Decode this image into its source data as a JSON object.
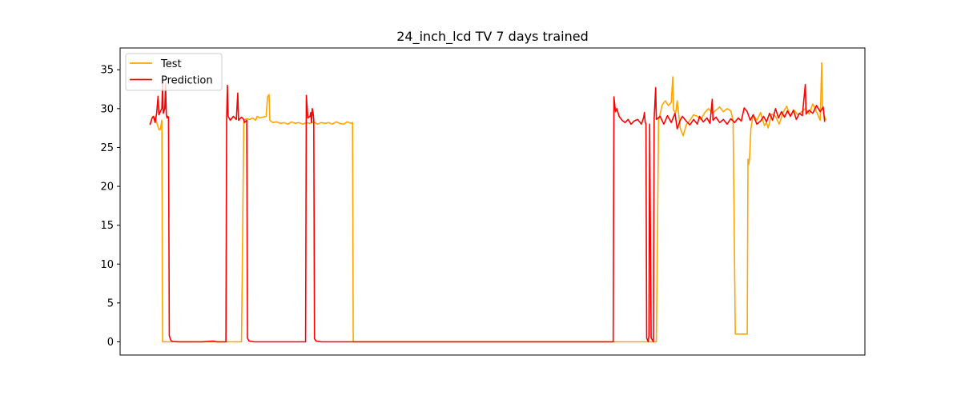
{
  "chart_data": {
    "type": "line",
    "title": "24_inch_lcd TV 7 days trained",
    "xlabel": "",
    "ylabel": "",
    "xlim": [
      0,
      1000
    ],
    "ylim": [
      -1.7,
      37.8
    ],
    "y_ticks": [
      0,
      5,
      10,
      15,
      20,
      25,
      30,
      35
    ],
    "y_tick_labels": [
      "0",
      "5",
      "10",
      "15",
      "20",
      "25",
      "30",
      "35"
    ],
    "x_ticks_visible": false,
    "grid": false,
    "legend": {
      "placement": "top-left",
      "entries": [
        "Test",
        "Prediction"
      ]
    },
    "series": [
      {
        "name": "Test",
        "color": "#ffa500",
        "points": [
          [
            40,
            28.0
          ],
          [
            44,
            29.0
          ],
          [
            48,
            28.6
          ],
          [
            52,
            27.3
          ],
          [
            54,
            27.3
          ],
          [
            56,
            28.5
          ],
          [
            57,
            0.0
          ],
          [
            95,
            0.0
          ],
          [
            120,
            0.0
          ],
          [
            159,
            0.0
          ],
          [
            163,
            0.0
          ],
          [
            166,
            28.5
          ],
          [
            170,
            28.7
          ],
          [
            174,
            28.6
          ],
          [
            178,
            28.8
          ],
          [
            182,
            28.5
          ],
          [
            184,
            29.0
          ],
          [
            188,
            28.8
          ],
          [
            192,
            28.9
          ],
          [
            196,
            29.0
          ],
          [
            198,
            31.5
          ],
          [
            200,
            31.8
          ],
          [
            201,
            28.5
          ],
          [
            205,
            28.2
          ],
          [
            210,
            28.3
          ],
          [
            215,
            28.1
          ],
          [
            220,
            28.2
          ],
          [
            225,
            28.0
          ],
          [
            230,
            28.3
          ],
          [
            235,
            28.1
          ],
          [
            240,
            28.2
          ],
          [
            245,
            28.0
          ],
          [
            250,
            28.2
          ],
          [
            255,
            28.1
          ],
          [
            260,
            28.3
          ],
          [
            265,
            28.0
          ],
          [
            270,
            28.2
          ],
          [
            275,
            28.1
          ],
          [
            280,
            28.2
          ],
          [
            285,
            28.0
          ],
          [
            290,
            28.3
          ],
          [
            295,
            28.1
          ],
          [
            300,
            28.0
          ],
          [
            305,
            28.3
          ],
          [
            310,
            28.1
          ],
          [
            312,
            28.2
          ],
          [
            313,
            0.0
          ],
          [
            400,
            0.0
          ],
          [
            500,
            0.0
          ],
          [
            600,
            0.0
          ],
          [
            700,
            0.0
          ],
          [
            720,
            0.0
          ],
          [
            723,
            28.5
          ],
          [
            728,
            30.5
          ],
          [
            732,
            31.0
          ],
          [
            736,
            30.4
          ],
          [
            740,
            30.8
          ],
          [
            742,
            34.1
          ],
          [
            743,
            29.8
          ],
          [
            746,
            29.5
          ],
          [
            748,
            31.0
          ],
          [
            752,
            27.5
          ],
          [
            756,
            26.5
          ],
          [
            760,
            27.9
          ],
          [
            765,
            28.5
          ],
          [
            770,
            29.2
          ],
          [
            775,
            29.0
          ],
          [
            780,
            28.6
          ],
          [
            785,
            29.5
          ],
          [
            790,
            30.0
          ],
          [
            795,
            29.4
          ],
          [
            800,
            29.8
          ],
          [
            805,
            30.2
          ],
          [
            810,
            29.6
          ],
          [
            815,
            30.0
          ],
          [
            820,
            29.7
          ],
          [
            823,
            28.5
          ],
          [
            826,
            1.0
          ],
          [
            830,
            1.0
          ],
          [
            835,
            1.0
          ],
          [
            840,
            1.0
          ],
          [
            842,
            1.0
          ],
          [
            843,
            23.5
          ],
          [
            844,
            22.8
          ],
          [
            845,
            23.5
          ],
          [
            847,
            27.5
          ],
          [
            850,
            29.2
          ],
          [
            855,
            28.5
          ],
          [
            860,
            29.5
          ],
          [
            865,
            27.8
          ],
          [
            868,
            28.2
          ],
          [
            870,
            27.5
          ],
          [
            875,
            29.3
          ],
          [
            880,
            29.0
          ],
          [
            885,
            28.0
          ],
          [
            890,
            29.5
          ],
          [
            895,
            30.3
          ],
          [
            900,
            29.0
          ],
          [
            905,
            29.8
          ],
          [
            910,
            29.2
          ],
          [
            915,
            29.6
          ],
          [
            920,
            30.0
          ],
          [
            925,
            29.3
          ],
          [
            930,
            30.6
          ],
          [
            935,
            29.6
          ],
          [
            940,
            28.5
          ],
          [
            942,
            35.9
          ],
          [
            943,
            30.5
          ],
          [
            945,
            29.2
          ],
          [
            948,
            28.5
          ]
        ]
      },
      {
        "name": "Prediction",
        "color": "#ff0000",
        "points": [
          [
            40,
            27.9
          ],
          [
            43,
            28.8
          ],
          [
            45,
            29.0
          ],
          [
            47,
            28.2
          ],
          [
            49,
            29.4
          ],
          [
            51,
            31.6
          ],
          [
            52,
            29.2
          ],
          [
            54,
            29.6
          ],
          [
            56,
            30.0
          ],
          [
            57,
            33.1
          ],
          [
            58,
            29.4
          ],
          [
            60,
            30.0
          ],
          [
            61,
            33.2
          ],
          [
            62,
            29.2
          ],
          [
            63,
            28.8
          ],
          [
            64,
            29.0
          ],
          [
            65,
            28.9
          ],
          [
            66,
            0.8
          ],
          [
            68,
            0.2
          ],
          [
            70,
            0.05
          ],
          [
            80,
            0.0
          ],
          [
            90,
            0.0
          ],
          [
            100,
            0.0
          ],
          [
            110,
            0.0
          ],
          [
            125,
            0.1
          ],
          [
            130,
            0.0
          ],
          [
            140,
            0.0
          ],
          [
            142,
            0.0
          ],
          [
            143,
            28.5
          ],
          [
            144,
            33.0
          ],
          [
            145,
            29.0
          ],
          [
            148,
            28.5
          ],
          [
            152,
            29.0
          ],
          [
            156,
            28.6
          ],
          [
            158,
            32.0
          ],
          [
            159,
            28.5
          ],
          [
            163,
            28.9
          ],
          [
            166,
            28.6
          ],
          [
            167,
            28.2
          ],
          [
            170,
            28.5
          ],
          [
            171,
            0.5
          ],
          [
            173,
            0.1
          ],
          [
            180,
            0.0
          ],
          [
            200,
            0.0
          ],
          [
            220,
            0.0
          ],
          [
            245,
            0.0
          ],
          [
            249,
            0.0
          ],
          [
            250,
            31.7
          ],
          [
            252,
            28.8
          ],
          [
            255,
            29.0
          ],
          [
            256,
            29.5
          ],
          [
            257,
            28.2
          ],
          [
            258,
            30.0
          ],
          [
            259,
            29.5
          ],
          [
            260,
            28.6
          ],
          [
            261,
            0.4
          ],
          [
            263,
            0.1
          ],
          [
            270,
            0.0
          ],
          [
            300,
            0.0
          ],
          [
            400,
            0.0
          ],
          [
            500,
            0.0
          ],
          [
            600,
            0.0
          ],
          [
            662,
            0.0
          ],
          [
            663,
            31.5
          ],
          [
            665,
            29.6
          ],
          [
            667,
            30.0
          ],
          [
            670,
            29.0
          ],
          [
            674,
            28.5
          ],
          [
            678,
            28.2
          ],
          [
            682,
            28.6
          ],
          [
            686,
            28.0
          ],
          [
            690,
            28.4
          ],
          [
            695,
            28.6
          ],
          [
            700,
            28.0
          ],
          [
            703,
            28.9
          ],
          [
            704,
            29.5
          ],
          [
            705,
            28.3
          ],
          [
            706,
            28.0
          ],
          [
            707,
            0.5
          ],
          [
            709,
            0.0
          ],
          [
            710,
            0.8
          ],
          [
            711,
            28.0
          ],
          [
            713,
            0.5
          ],
          [
            716,
            0.0
          ],
          [
            717,
            28.5
          ],
          [
            719,
            32.7
          ],
          [
            720,
            28.6
          ],
          [
            725,
            29.0
          ],
          [
            730,
            28.0
          ],
          [
            735,
            29.1
          ],
          [
            740,
            28.2
          ],
          [
            745,
            29.4
          ],
          [
            748,
            27.4
          ],
          [
            752,
            28.5
          ],
          [
            755,
            29.0
          ],
          [
            760,
            28.4
          ],
          [
            765,
            27.9
          ],
          [
            770,
            28.6
          ],
          [
            775,
            28.0
          ],
          [
            778,
            29.0
          ],
          [
            783,
            28.3
          ],
          [
            788,
            28.8
          ],
          [
            792,
            28.1
          ],
          [
            795,
            31.2
          ],
          [
            796,
            28.5
          ],
          [
            800,
            28.9
          ],
          [
            805,
            28.2
          ],
          [
            810,
            28.6
          ],
          [
            815,
            28.0
          ],
          [
            820,
            28.7
          ],
          [
            825,
            28.2
          ],
          [
            830,
            28.8
          ],
          [
            834,
            28.4
          ],
          [
            838,
            30.1
          ],
          [
            842,
            29.6
          ],
          [
            846,
            28.5
          ],
          [
            850,
            29.2
          ],
          [
            855,
            28.0
          ],
          [
            860,
            28.4
          ],
          [
            864,
            29.0
          ],
          [
            868,
            28.3
          ],
          [
            872,
            29.4
          ],
          [
            876,
            28.5
          ],
          [
            880,
            30.0
          ],
          [
            884,
            28.8
          ],
          [
            888,
            29.6
          ],
          [
            892,
            28.9
          ],
          [
            896,
            29.7
          ],
          [
            900,
            29.0
          ],
          [
            904,
            29.8
          ],
          [
            908,
            28.6
          ],
          [
            912,
            29.4
          ],
          [
            916,
            29.1
          ],
          [
            920,
            33.1
          ],
          [
            921,
            29.3
          ],
          [
            925,
            29.8
          ],
          [
            930,
            29.4
          ],
          [
            935,
            30.4
          ],
          [
            940,
            29.6
          ],
          [
            944,
            30.2
          ],
          [
            946,
            28.3
          ]
        ]
      }
    ]
  }
}
